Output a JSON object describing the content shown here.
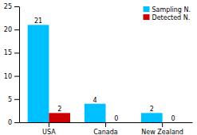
{
  "chart_data": {
    "type": "bar",
    "categories": [
      "USA",
      "Canada",
      "New Zealand"
    ],
    "series": [
      {
        "name": "Sampling N.",
        "color": "#00BFFF",
        "values": [
          21,
          4,
          2
        ]
      },
      {
        "name": "Detected N.",
        "color": "#CC0000",
        "values": [
          2,
          0,
          0
        ]
      }
    ],
    "ylim": [
      0,
      25
    ],
    "yticks": [
      0,
      5,
      10,
      15,
      20,
      25
    ],
    "data_labels": true,
    "legend": "upper right",
    "grid": false
  }
}
